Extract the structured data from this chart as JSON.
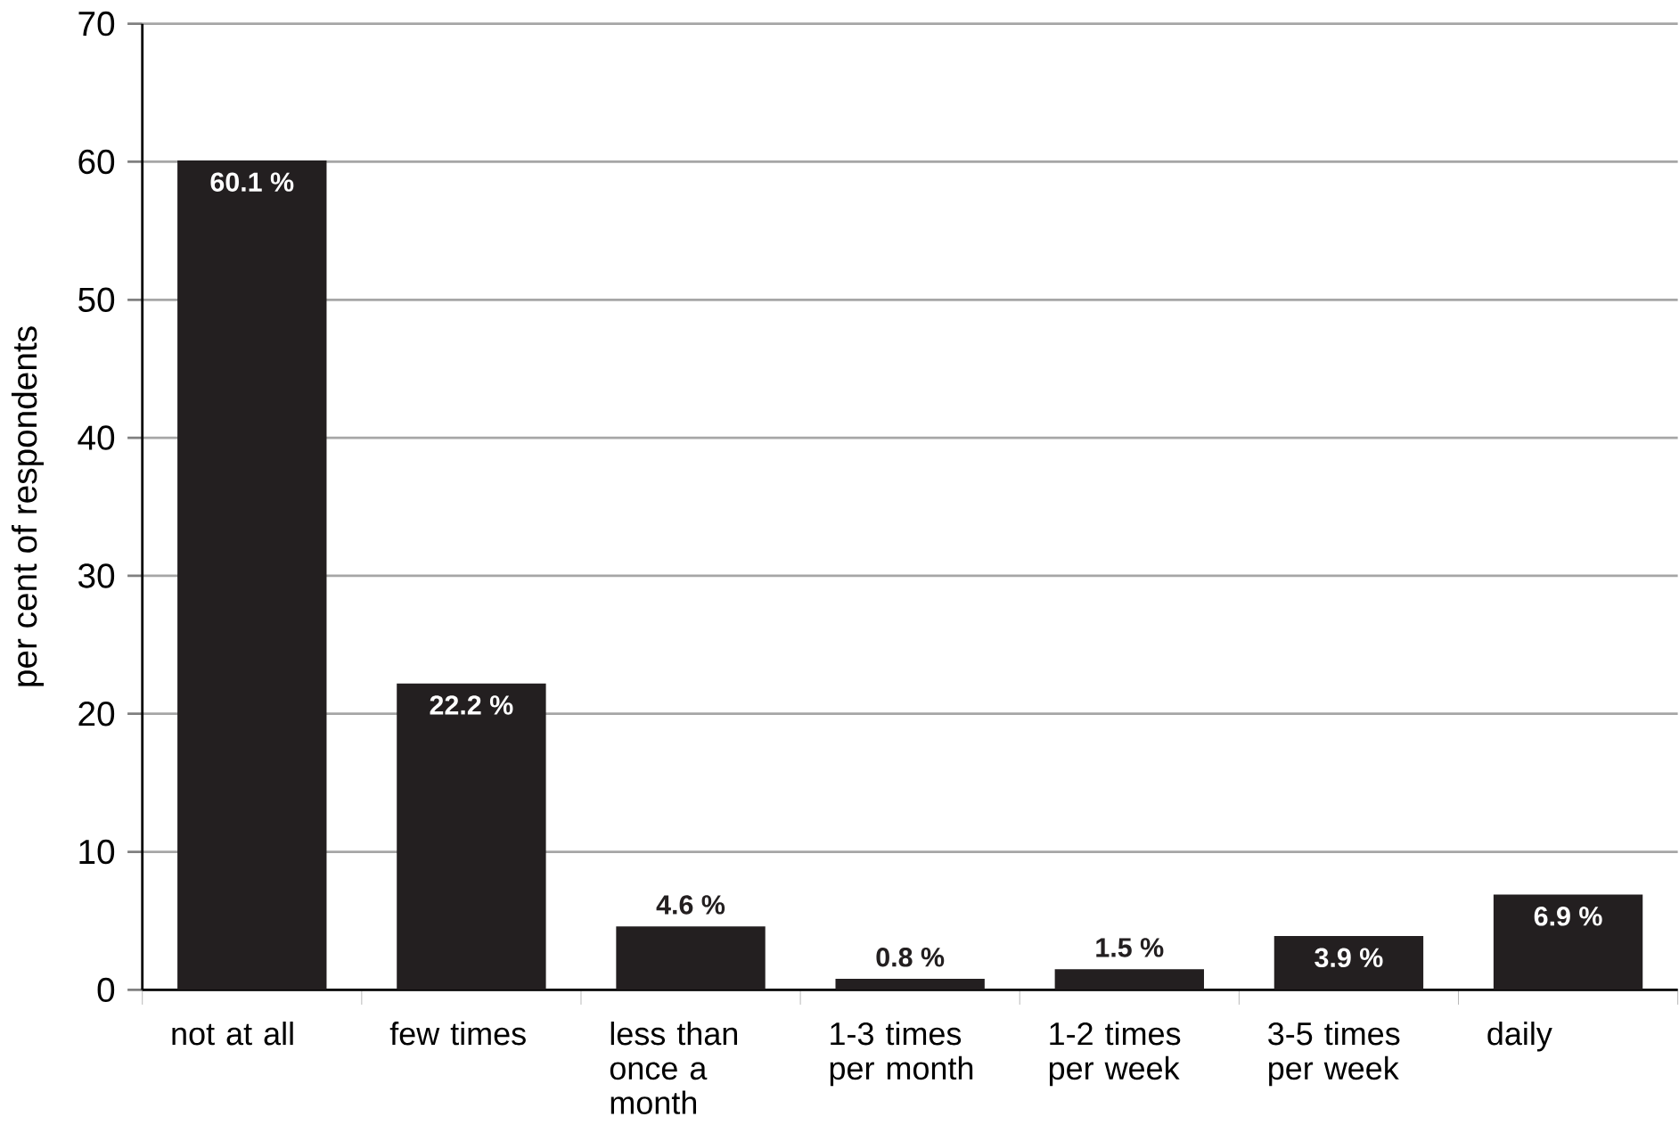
{
  "chart_data": {
    "type": "bar",
    "ylabel": "per cent of respondents",
    "categories": [
      "not at all",
      "few times",
      "less than once a month",
      "1-3 times per month",
      "1-2 times per week",
      "3-5 times per week",
      "daily"
    ],
    "values": [
      60.1,
      22.2,
      4.6,
      0.8,
      1.5,
      3.9,
      6.9
    ],
    "value_labels": [
      "60.1 %",
      "22.2 %",
      "4.6 %",
      "0.8 %",
      "1.5 %",
      "3.9 %",
      "6.9 %"
    ],
    "color": "#231f20",
    "ylim": [
      0,
      70
    ],
    "yticks": [
      0,
      10,
      20,
      30,
      40,
      50,
      60,
      70
    ],
    "grid": "y"
  }
}
